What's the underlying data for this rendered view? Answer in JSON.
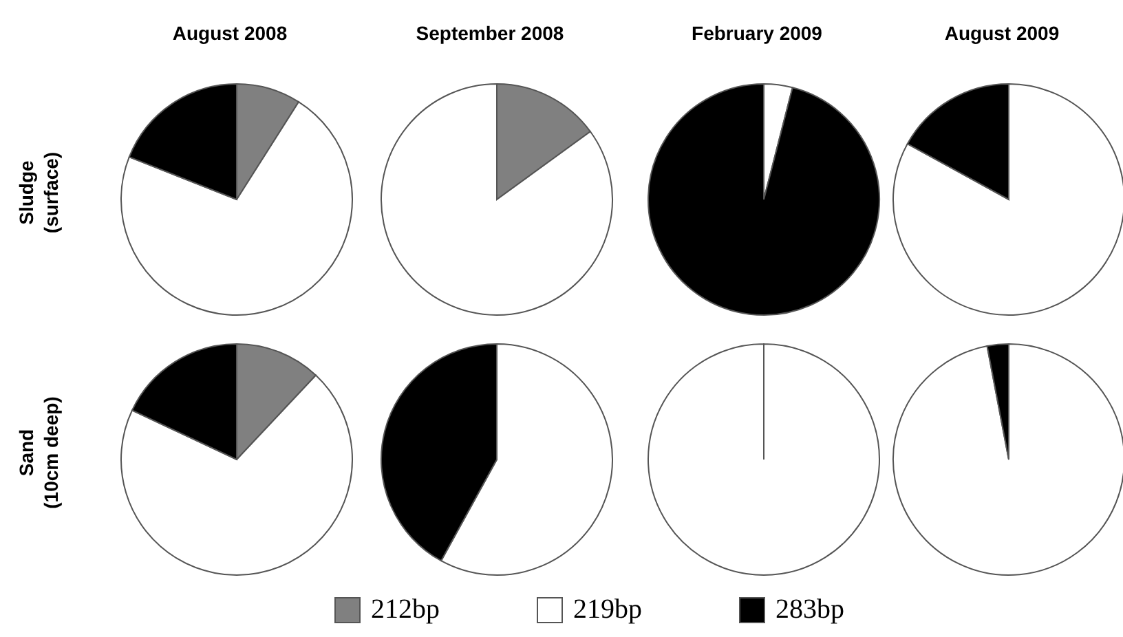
{
  "chart_data": [
    {
      "type": "pie",
      "title": "August 2008",
      "ylabel": "Sludge (surface)",
      "categories": [
        "212bp",
        "219bp",
        "283bp"
      ],
      "values": [
        9,
        72,
        19
      ],
      "colors": [
        "#808080",
        "#ffffff",
        "#000000"
      ],
      "legend": "bottom"
    },
    {
      "type": "pie",
      "title": "September 2008",
      "categories": [
        null,
        null,
        null
      ],
      "values": [
        15,
        85,
        0
      ],
      "colors": [
        "#808080",
        "#ffffff",
        "#000000"
      ]
    },
    {
      "type": "pie",
      "title": "February 2009",
      "categories": [
        null,
        null,
        null
      ],
      "values": [
        0,
        4,
        96
      ],
      "colors": [
        "#808080",
        "#ffffff",
        "#000000"
      ]
    },
    {
      "type": "pie",
      "title": "August 2009",
      "categories": [
        null,
        null,
        null
      ],
      "values": [
        0,
        83,
        17
      ],
      "colors": [
        "#808080",
        "#ffffff",
        "#000000"
      ]
    },
    {
      "type": "pie",
      "ylabel": "Sand (10cm deep)",
      "categories": [
        null,
        null,
        null
      ],
      "values": [
        12,
        70,
        18
      ],
      "colors": [
        "#808080",
        "#ffffff",
        "#000000"
      ]
    },
    {
      "type": "pie",
      "categories": [
        null,
        null,
        null
      ],
      "values": [
        0,
        58,
        42
      ],
      "colors": [
        "#808080",
        "#ffffff",
        "#000000"
      ]
    },
    {
      "type": "pie",
      "categories": [
        null,
        null,
        null
      ],
      "values": [
        0,
        100,
        0
      ],
      "colors": [
        "#808080",
        "#ffffff",
        "#000000"
      ]
    },
    {
      "type": "pie",
      "categories": [
        null,
        null,
        null
      ],
      "values": [
        0,
        97,
        3
      ],
      "colors": [
        "#808080",
        "#ffffff",
        "#000000"
      ]
    }
  ]
}
